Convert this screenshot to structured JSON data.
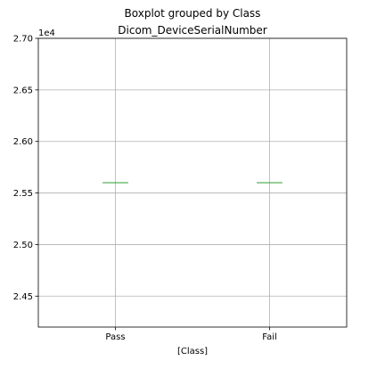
{
  "chart_data": {
    "type": "boxplot",
    "suptitle": "Boxplot grouped by Class",
    "title": "Dicom_DeviceSerialNumber",
    "xlabel": "[Class]",
    "ylabel": "",
    "y_offset_label": "1e4",
    "categories": [
      "Pass",
      "Fail"
    ],
    "ylim": [
      24200,
      27000
    ],
    "yticks": [
      24500,
      25000,
      25500,
      26000,
      26500,
      27000
    ],
    "ytick_labels": [
      "2.45",
      "2.50",
      "2.55",
      "2.60",
      "2.65",
      "2.70"
    ],
    "grid": true,
    "boxes": [
      {
        "category": "Pass",
        "min": 25600,
        "q1": 25600,
        "median": 25600,
        "q3": 25600,
        "max": 25600
      },
      {
        "category": "Fail",
        "min": 25600,
        "q1": 25600,
        "median": 25600,
        "q3": 25600,
        "max": 25600
      }
    ],
    "colors": {
      "box": "#1f77b4",
      "median": "#2ca02c",
      "grid": "#b0b0b0"
    }
  }
}
